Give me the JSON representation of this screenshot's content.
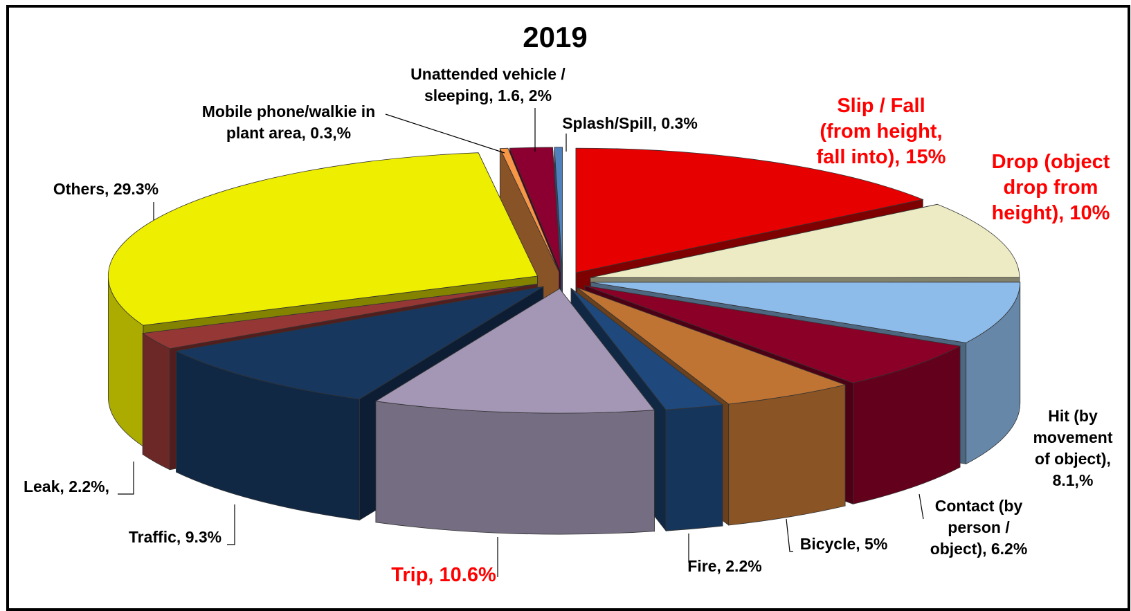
{
  "chart_data": {
    "type": "pie3d",
    "title": "2019",
    "categories": [
      "Slip / Fall (from height, fall into),",
      "Drop (object drop from height),",
      "Hit (by movement of object),",
      "Contact (by person / object),",
      "Bicycle,",
      "Fire,",
      "Trip,",
      "Traffic,",
      "Leak,",
      "Others,",
      "Mobile phone/walkie in plant area,",
      "Unattended vehicle / sleeping,",
      "Splash/Spill,"
    ],
    "values": [
      15,
      10,
      8.1,
      6.2,
      5,
      2.2,
      10.6,
      9.3,
      2.2,
      29.3,
      0.3,
      1.6,
      0.3
    ],
    "value_labels": [
      "15%",
      "10%",
      "8.1,%",
      "6.2%",
      "5%",
      "2.2%",
      "10.6%",
      "9.3%",
      "2.2%,",
      "29.3%",
      "0.3,%",
      "1.6, 2%",
      "0.3%"
    ],
    "colors": [
      "#e60000",
      "#ecebc4",
      "#8dbbea",
      "#8a0026",
      "#c07434",
      "#1f497d",
      "#a397b5",
      "#17375e",
      "#953735",
      "#eeee00",
      "#f79646",
      "#8b0030",
      "#4f81bd"
    ],
    "label_colors": [
      "#ff0000",
      "#ff0000",
      "#000000",
      "#000000",
      "#000000",
      "#000000",
      "#ff0000",
      "#000000",
      "#000000",
      "#000000",
      "#000000",
      "#000000",
      "#000000"
    ]
  }
}
